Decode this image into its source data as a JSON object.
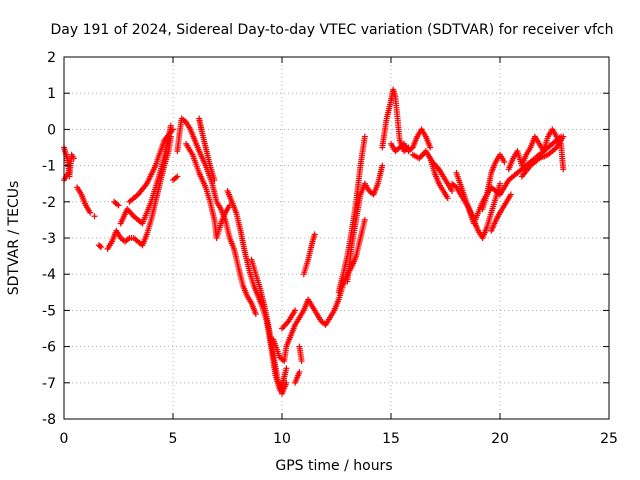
{
  "chart_data": {
    "type": "scatter",
    "title": "Day 191 of 2024, Sidereal Day-to-day VTEC variation (SDTVAR) for receiver vfch",
    "xlabel": "GPS time / hours",
    "ylabel": "SDTVAR / TECUs",
    "xlim": [
      0,
      25
    ],
    "ylim": [
      -8,
      2
    ],
    "xticks": [
      0,
      5,
      10,
      15,
      20,
      25
    ],
    "yticks": [
      -8,
      -7,
      -6,
      -5,
      -4,
      -3,
      -2,
      -1,
      0,
      1,
      2
    ],
    "grid": true,
    "marker": "+",
    "color": "#ff0000",
    "series": [
      {
        "name": "tracks",
        "bands": [
          [
            [
              0.0,
              -0.5
            ],
            [
              0.15,
              -0.8
            ],
            [
              0.25,
              -1.3
            ],
            [
              0.35,
              -0.7
            ],
            [
              0.45,
              -0.8
            ]
          ],
          [
            [
              0.0,
              -1.4
            ],
            [
              0.1,
              -1.3
            ],
            [
              0.2,
              -1.2
            ]
          ],
          [
            [
              0.6,
              -1.6
            ],
            [
              0.8,
              -1.8
            ],
            [
              1.0,
              -2.1
            ],
            [
              1.2,
              -2.3
            ]
          ],
          [
            [
              1.4,
              -2.4
            ]
          ],
          [
            [
              1.6,
              -3.2
            ],
            [
              1.7,
              -3.25
            ]
          ],
          [
            [
              2.0,
              -3.3
            ],
            [
              2.2,
              -3.1
            ],
            [
              2.4,
              -2.8
            ],
            [
              2.6,
              -3.0
            ],
            [
              2.8,
              -3.1
            ],
            [
              3.0,
              -3.0
            ],
            [
              3.2,
              -3.0
            ],
            [
              3.4,
              -3.1
            ],
            [
              3.6,
              -3.2
            ],
            [
              3.8,
              -2.9
            ],
            [
              4.0,
              -2.5
            ],
            [
              4.2,
              -2.0
            ],
            [
              4.4,
              -1.5
            ],
            [
              4.6,
              -1.0
            ],
            [
              4.8,
              -0.6
            ],
            [
              4.9,
              -0.2
            ]
          ],
          [
            [
              2.3,
              -2.0
            ],
            [
              2.5,
              -2.1
            ]
          ],
          [
            [
              2.6,
              -2.6
            ],
            [
              2.9,
              -2.2
            ],
            [
              3.2,
              -2.4
            ],
            [
              3.6,
              -2.6
            ],
            [
              4.0,
              -2.0
            ],
            [
              4.4,
              -1.2
            ],
            [
              4.7,
              -0.5
            ],
            [
              4.9,
              0.1
            ]
          ],
          [
            [
              3.0,
              -2.0
            ],
            [
              3.4,
              -1.8
            ],
            [
              3.8,
              -1.5
            ],
            [
              4.2,
              -1.0
            ],
            [
              4.6,
              -0.3
            ],
            [
              5.0,
              0.0
            ]
          ],
          [
            [
              5.0,
              -1.4
            ],
            [
              5.2,
              -1.3
            ]
          ],
          [
            [
              5.2,
              -0.6
            ],
            [
              5.3,
              -0.1
            ],
            [
              5.4,
              0.3
            ],
            [
              5.6,
              0.2
            ],
            [
              5.8,
              0.0
            ],
            [
              6.0,
              -0.3
            ],
            [
              6.2,
              -0.6
            ],
            [
              6.5,
              -1.0
            ],
            [
              6.8,
              -1.5
            ],
            [
              7.0,
              -2.0
            ],
            [
              7.2,
              -2.2
            ],
            [
              7.4,
              -2.5
            ],
            [
              7.6,
              -3.0
            ],
            [
              7.8,
              -3.3
            ],
            [
              8.0,
              -3.8
            ],
            [
              8.2,
              -4.3
            ],
            [
              8.4,
              -4.6
            ],
            [
              8.6,
              -4.8
            ],
            [
              8.8,
              -5.1
            ]
          ],
          [
            [
              5.6,
              -0.4
            ],
            [
              5.9,
              -0.7
            ],
            [
              6.2,
              -1.2
            ],
            [
              6.5,
              -1.6
            ],
            [
              6.7,
              -2.0
            ],
            [
              6.9,
              -2.5
            ],
            [
              7.0,
              -3.0
            ],
            [
              7.2,
              -2.6
            ],
            [
              7.4,
              -2.3
            ],
            [
              7.6,
              -2.1
            ]
          ],
          [
            [
              6.2,
              0.3
            ],
            [
              6.3,
              0.0
            ],
            [
              6.5,
              -0.5
            ],
            [
              6.7,
              -1.0
            ],
            [
              6.9,
              -1.4
            ]
          ],
          [
            [
              7.5,
              -1.7
            ],
            [
              7.7,
              -2.0
            ],
            [
              7.9,
              -2.3
            ],
            [
              8.1,
              -2.8
            ],
            [
              8.3,
              -3.4
            ],
            [
              8.5,
              -3.9
            ],
            [
              8.7,
              -4.3
            ],
            [
              8.9,
              -4.6
            ],
            [
              9.1,
              -4.9
            ],
            [
              9.3,
              -5.3
            ],
            [
              9.5,
              -6.0
            ],
            [
              9.7,
              -6.8
            ],
            [
              9.9,
              -7.2
            ],
            [
              10.0,
              -7.1
            ],
            [
              10.2,
              -6.6
            ]
          ],
          [
            [
              8.6,
              -3.6
            ],
            [
              8.8,
              -4.0
            ],
            [
              9.0,
              -4.4
            ],
            [
              9.2,
              -4.9
            ],
            [
              9.4,
              -5.5
            ],
            [
              9.6,
              -6.2
            ],
            [
              9.8,
              -6.9
            ],
            [
              10.0,
              -7.3
            ],
            [
              10.2,
              -7.0
            ]
          ],
          [
            [
              9.6,
              -5.8
            ],
            [
              9.9,
              -6.3
            ],
            [
              10.1,
              -6.4
            ],
            [
              10.2,
              -6.0
            ],
            [
              10.4,
              -5.7
            ],
            [
              10.6,
              -5.4
            ],
            [
              10.8,
              -5.2
            ],
            [
              11.0,
              -5.0
            ],
            [
              11.2,
              -4.7
            ],
            [
              11.4,
              -4.9
            ],
            [
              11.6,
              -5.1
            ],
            [
              11.8,
              -5.3
            ],
            [
              12.0,
              -5.4
            ],
            [
              12.2,
              -5.2
            ],
            [
              12.4,
              -5.0
            ],
            [
              12.6,
              -4.7
            ],
            [
              12.8,
              -4.3
            ],
            [
              13.0,
              -4.0
            ],
            [
              13.2,
              -3.8
            ],
            [
              13.4,
              -3.5
            ],
            [
              13.6,
              -3.0
            ],
            [
              13.8,
              -2.5
            ]
          ],
          [
            [
              10.0,
              -5.5
            ],
            [
              10.3,
              -5.3
            ],
            [
              10.6,
              -5.0
            ]
          ],
          [
            [
              10.8,
              -6.0
            ],
            [
              10.9,
              -6.4
            ]
          ],
          [
            [
              10.6,
              -7.0
            ],
            [
              10.8,
              -6.7
            ]
          ],
          [
            [
              11.0,
              -4.0
            ],
            [
              11.2,
              -3.6
            ],
            [
              11.4,
              -3.1
            ],
            [
              11.5,
              -2.9
            ]
          ],
          [
            [
              12.6,
              -4.5
            ],
            [
              12.8,
              -4.0
            ],
            [
              13.0,
              -3.5
            ],
            [
              13.2,
              -2.8
            ],
            [
              13.4,
              -2.0
            ],
            [
              13.6,
              -1.0
            ],
            [
              13.8,
              -0.2
            ]
          ],
          [
            [
              13.0,
              -4.2
            ],
            [
              13.2,
              -3.2
            ],
            [
              13.4,
              -2.5
            ],
            [
              13.6,
              -1.8
            ],
            [
              13.8,
              -1.5
            ],
            [
              14.0,
              -1.7
            ],
            [
              14.2,
              -1.8
            ],
            [
              14.4,
              -1.5
            ],
            [
              14.6,
              -1.0
            ]
          ],
          [
            [
              14.6,
              -0.5
            ],
            [
              14.8,
              0.3
            ],
            [
              15.0,
              0.8
            ],
            [
              15.1,
              1.1
            ],
            [
              15.2,
              0.9
            ],
            [
              15.3,
              0.3
            ],
            [
              15.4,
              -0.3
            ],
            [
              15.6,
              -0.6
            ],
            [
              15.8,
              -0.5
            ]
          ],
          [
            [
              15.0,
              -0.4
            ],
            [
              15.2,
              -0.6
            ],
            [
              15.4,
              -0.5
            ],
            [
              15.6,
              -0.4
            ],
            [
              15.8,
              -0.6
            ],
            [
              16.0,
              -0.5
            ],
            [
              16.2,
              -0.2
            ],
            [
              16.4,
              0.0
            ],
            [
              16.6,
              -0.2
            ],
            [
              16.8,
              -0.5
            ]
          ],
          [
            [
              16.0,
              -0.7
            ],
            [
              16.3,
              -0.8
            ],
            [
              16.6,
              -0.6
            ],
            [
              16.9,
              -0.9
            ],
            [
              17.2,
              -1.1
            ],
            [
              17.5,
              -1.4
            ],
            [
              17.8,
              -1.7
            ]
          ],
          [
            [
              16.8,
              -0.8
            ],
            [
              17.0,
              -1.2
            ],
            [
              17.2,
              -1.5
            ],
            [
              17.4,
              -1.7
            ],
            [
              17.6,
              -1.9
            ]
          ],
          [
            [
              17.8,
              -1.5
            ],
            [
              18.0,
              -1.6
            ],
            [
              18.2,
              -1.8
            ],
            [
              18.4,
              -2.0
            ],
            [
              18.6,
              -2.2
            ],
            [
              18.8,
              -2.5
            ],
            [
              19.0,
              -2.8
            ],
            [
              19.2,
              -3.0
            ],
            [
              19.4,
              -2.7
            ],
            [
              19.6,
              -2.3
            ],
            [
              19.8,
              -1.9
            ],
            [
              20.0,
              -1.5
            ]
          ],
          [
            [
              18.0,
              -1.2
            ],
            [
              18.4,
              -1.9
            ],
            [
              18.8,
              -2.6
            ],
            [
              19.2,
              -2.0
            ],
            [
              19.6,
              -1.6
            ],
            [
              20.0,
              -1.8
            ],
            [
              20.4,
              -1.4
            ],
            [
              20.8,
              -1.2
            ],
            [
              21.2,
              -1.0
            ],
            [
              21.6,
              -0.8
            ],
            [
              22.0,
              -0.6
            ],
            [
              22.4,
              -0.4
            ],
            [
              22.8,
              -0.2
            ]
          ],
          [
            [
              19.2,
              -2.2
            ],
            [
              19.4,
              -1.8
            ],
            [
              19.6,
              -1.2
            ],
            [
              19.8,
              -0.9
            ],
            [
              20.0,
              -0.7
            ],
            [
              20.2,
              -0.9
            ]
          ],
          [
            [
              19.6,
              -2.8
            ],
            [
              19.9,
              -2.4
            ],
            [
              20.2,
              -2.1
            ],
            [
              20.5,
              -1.8
            ]
          ],
          [
            [
              20.4,
              -1.1
            ],
            [
              20.6,
              -0.8
            ],
            [
              20.8,
              -0.6
            ],
            [
              21.0,
              -1.0
            ],
            [
              21.2,
              -0.7
            ],
            [
              21.4,
              -0.5
            ],
            [
              21.6,
              -0.2
            ],
            [
              21.8,
              -0.4
            ],
            [
              22.0,
              -0.6
            ],
            [
              22.2,
              -0.2
            ],
            [
              22.4,
              0.0
            ],
            [
              22.6,
              -0.2
            ],
            [
              22.8,
              -0.4
            ],
            [
              22.9,
              -1.1
            ]
          ],
          [
            [
              21.0,
              -1.3
            ],
            [
              21.4,
              -1.0
            ],
            [
              21.8,
              -0.8
            ],
            [
              22.2,
              -0.7
            ],
            [
              22.6,
              -0.5
            ],
            [
              22.9,
              -0.2
            ]
          ]
        ]
      }
    ]
  }
}
